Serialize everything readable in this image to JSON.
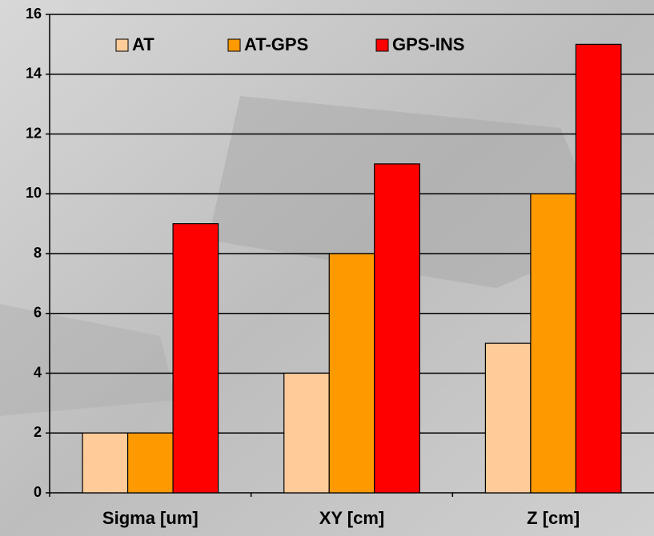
{
  "chart_data": {
    "type": "bar",
    "categories": [
      "Sigma [um]",
      "XY [cm]",
      "Z [cm]"
    ],
    "series": [
      {
        "name": "AT",
        "color": "#ffcc99",
        "values": [
          2,
          4,
          5
        ]
      },
      {
        "name": "AT-GPS",
        "color": "#ff9900",
        "values": [
          2,
          8,
          10
        ]
      },
      {
        "name": "GPS-INS",
        "color": "#ff0000",
        "values": [
          9,
          11,
          15
        ]
      }
    ],
    "ylim": [
      0,
      16
    ],
    "yticks": [
      0,
      2,
      4,
      6,
      8,
      10,
      12,
      14,
      16
    ],
    "grid": true,
    "legend": "top"
  }
}
